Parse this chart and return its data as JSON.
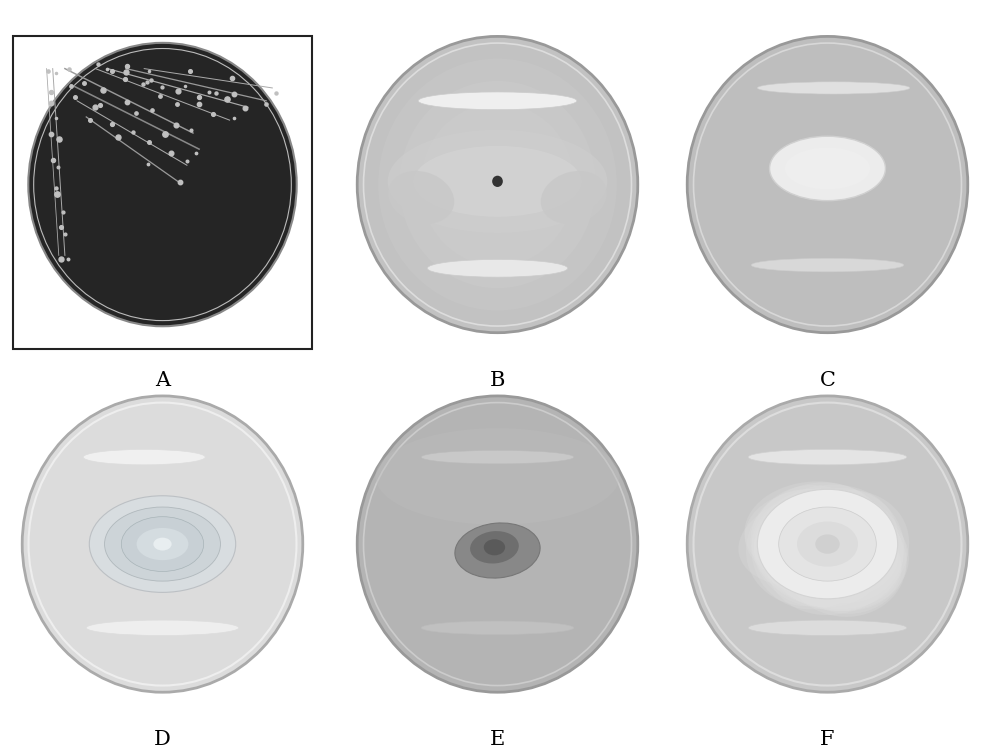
{
  "background_color": "#ffffff",
  "fig_width": 10.0,
  "fig_height": 7.49,
  "labels": [
    "A",
    "B",
    "C",
    "D",
    "E",
    "F"
  ],
  "label_fontsize": 15,
  "outer_bg_top": "#ffffff",
  "outer_bg_bot": "#000000"
}
